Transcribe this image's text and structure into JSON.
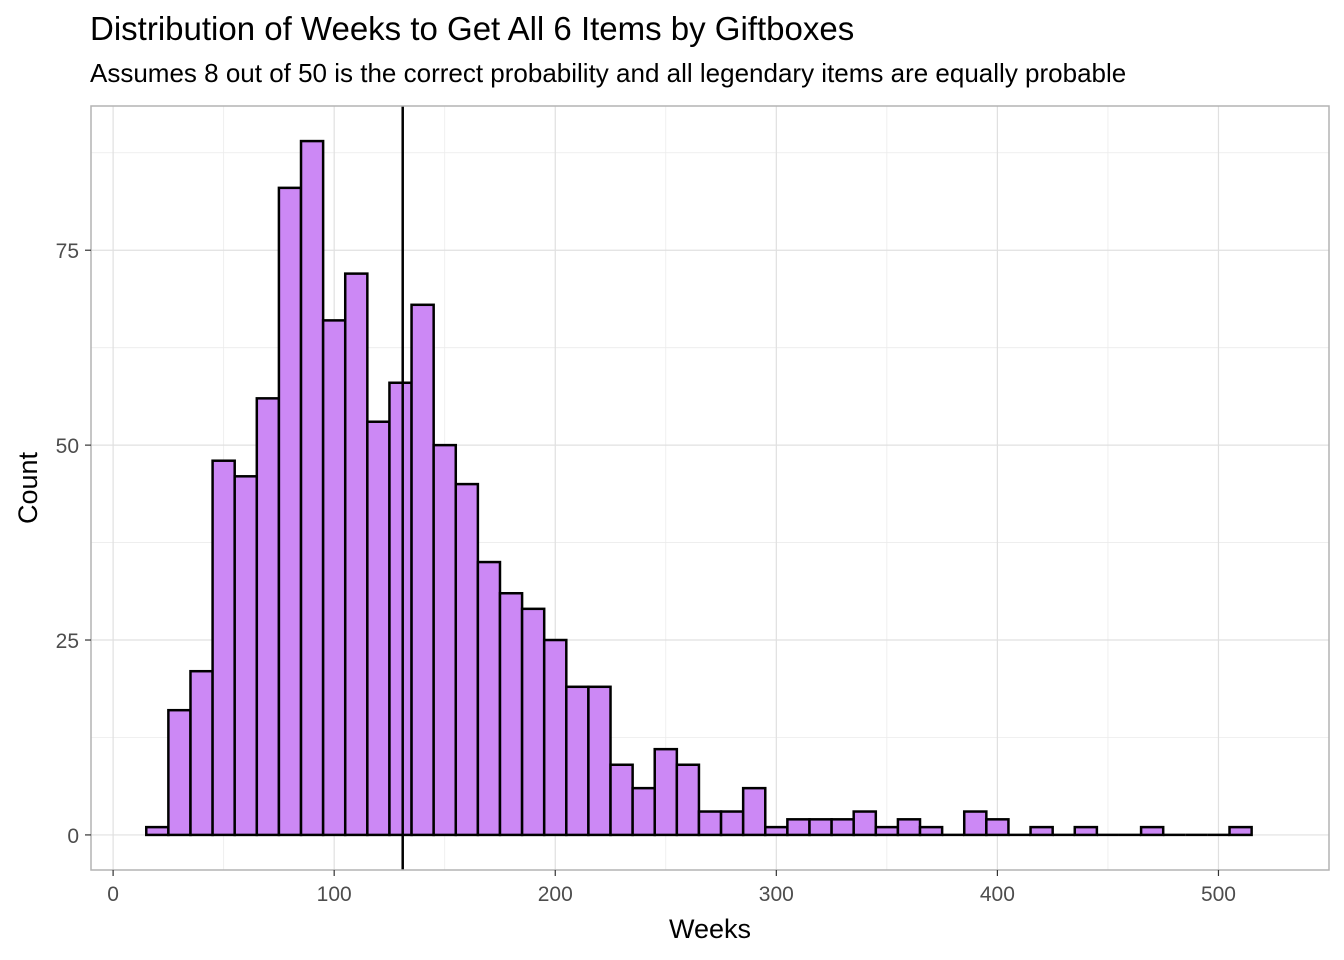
{
  "chart_data": {
    "type": "bar",
    "title": "Distribution of Weeks to Get All 6 Items by Giftboxes",
    "subtitle": "Assumes 8 out of 50 is the correct probability and all legendary items are equally probable",
    "xlabel": "Weeks",
    "ylabel": "Count",
    "xlim": [
      -10,
      550
    ],
    "ylim": [
      -4.5,
      93.5
    ],
    "x_ticks": [
      0,
      100,
      200,
      300,
      400,
      500
    ],
    "y_ticks": [
      0,
      25,
      50,
      75
    ],
    "grid": true,
    "bin_width": 10,
    "bin_start": 15,
    "values": [
      1,
      16,
      21,
      48,
      46,
      56,
      83,
      89,
      66,
      72,
      53,
      58,
      68,
      50,
      45,
      35,
      31,
      29,
      25,
      19,
      19,
      9,
      6,
      11,
      9,
      3,
      3,
      6,
      1,
      2,
      2,
      2,
      3,
      1,
      2,
      1,
      0,
      3,
      2,
      0,
      1,
      0,
      1,
      0,
      0,
      1,
      0,
      0,
      0,
      1
    ],
    "vline": 131,
    "colors": {
      "bar_fill": "#cc88f5",
      "bar_stroke": "#000000",
      "vline": "#000000",
      "grid": "#ebebeb",
      "panel_border": "#b3b3b3"
    }
  }
}
